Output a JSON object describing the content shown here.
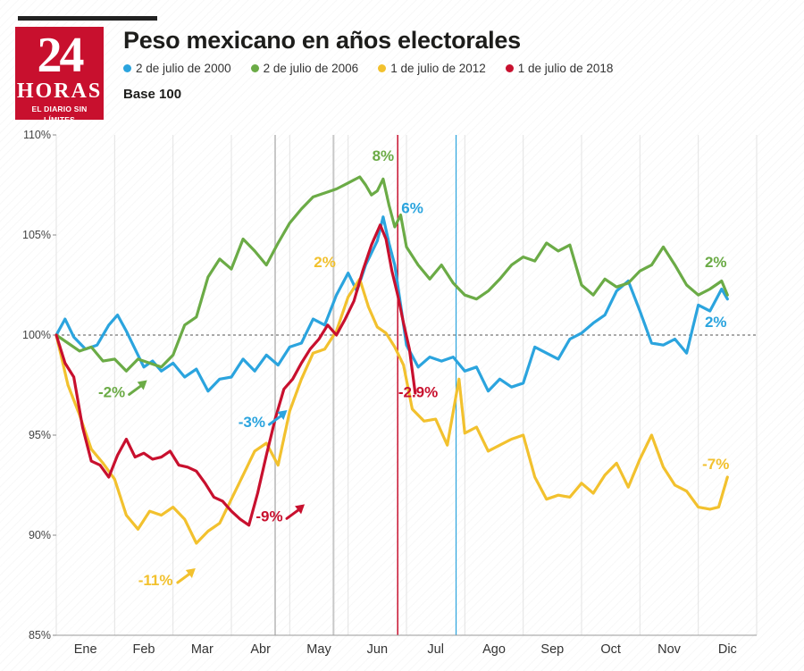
{
  "header": {
    "logo_number": "24",
    "logo_word": "HORAS",
    "logo_tagline": "EL DIARIO SIN LÍMITES",
    "title": "Peso mexicano en años electorales",
    "base_note": "Base 100"
  },
  "chart_data": {
    "type": "line",
    "ylim": [
      85,
      110
    ],
    "y_ticks": [
      85,
      90,
      95,
      100,
      105,
      110
    ],
    "y_tick_labels": [
      "85%",
      "90%",
      "95%",
      "100%",
      "105%",
      "110%"
    ],
    "x_ticks": [
      "Ene",
      "Feb",
      "Mar",
      "Abr",
      "May",
      "Jun",
      "Jul",
      "Ago",
      "Sep",
      "Oct",
      "Nov",
      "Dic"
    ],
    "reference_line": 100,
    "grid": "vertical",
    "series": [
      {
        "name": "2 de julio de 2000",
        "color": "#2ba4de",
        "x": [
          0.0,
          0.15,
          0.3,
          0.5,
          0.7,
          0.9,
          1.05,
          1.2,
          1.35,
          1.5,
          1.65,
          1.8,
          2.0,
          2.2,
          2.4,
          2.6,
          2.8,
          3.0,
          3.2,
          3.4,
          3.6,
          3.8,
          4.0,
          4.2,
          4.4,
          4.6,
          4.8,
          5.0,
          5.15,
          5.3,
          5.5,
          5.6,
          5.7,
          5.8,
          5.9,
          6.0,
          6.2,
          6.4,
          6.6,
          6.8,
          7.0,
          7.2,
          7.4,
          7.6,
          7.8,
          8.0,
          8.2,
          8.4,
          8.6,
          8.8,
          9.0,
          9.2,
          9.4,
          9.6,
          9.8,
          10.0,
          10.2,
          10.4,
          10.6,
          10.8,
          11.0,
          11.2,
          11.4,
          11.5
        ],
        "values": [
          100.0,
          100.8,
          99.9,
          99.3,
          99.5,
          100.5,
          101.0,
          100.2,
          99.3,
          98.4,
          98.7,
          98.2,
          98.6,
          97.9,
          98.3,
          97.2,
          97.8,
          97.9,
          98.8,
          98.2,
          99.0,
          98.5,
          99.4,
          99.6,
          100.8,
          100.5,
          102.0,
          103.1,
          102.2,
          103.5,
          104.7,
          105.9,
          104.6,
          103.5,
          101.5,
          99.5,
          98.4,
          98.9,
          98.7,
          98.9,
          98.2,
          98.4,
          97.2,
          97.8,
          97.4,
          97.6,
          99.4,
          99.1,
          98.8,
          99.8,
          100.1,
          100.6,
          101.0,
          102.2,
          102.7,
          101.2,
          99.6,
          99.5,
          99.8,
          99.1,
          101.5,
          101.2,
          102.3,
          101.8
        ]
      },
      {
        "name": "2 de julio de 2006",
        "color": "#6bab46",
        "x": [
          0.0,
          0.2,
          0.4,
          0.6,
          0.8,
          1.0,
          1.2,
          1.4,
          1.6,
          1.8,
          2.0,
          2.2,
          2.4,
          2.6,
          2.8,
          3.0,
          3.2,
          3.4,
          3.6,
          3.8,
          4.0,
          4.2,
          4.4,
          4.6,
          4.8,
          5.0,
          5.2,
          5.3,
          5.4,
          5.5,
          5.6,
          5.7,
          5.8,
          5.9,
          6.0,
          6.2,
          6.4,
          6.6,
          6.8,
          7.0,
          7.2,
          7.4,
          7.6,
          7.8,
          8.0,
          8.2,
          8.4,
          8.6,
          8.8,
          9.0,
          9.2,
          9.4,
          9.6,
          9.8,
          10.0,
          10.2,
          10.4,
          10.6,
          10.8,
          11.0,
          11.2,
          11.4,
          11.5
        ],
        "values": [
          100.0,
          99.6,
          99.2,
          99.4,
          98.7,
          98.8,
          98.2,
          98.8,
          98.6,
          98.4,
          99.0,
          100.5,
          100.9,
          102.9,
          103.8,
          103.3,
          104.8,
          104.2,
          103.5,
          104.6,
          105.6,
          106.3,
          106.9,
          107.1,
          107.3,
          107.6,
          107.9,
          107.5,
          107.0,
          107.2,
          107.8,
          106.5,
          105.4,
          106.0,
          104.4,
          103.5,
          102.8,
          103.5,
          102.6,
          102.0,
          101.8,
          102.2,
          102.8,
          103.5,
          103.9,
          103.7,
          104.6,
          104.2,
          104.5,
          102.5,
          102.0,
          102.8,
          102.4,
          102.6,
          103.2,
          103.5,
          104.4,
          103.5,
          102.5,
          102.0,
          102.3,
          102.7,
          102.0
        ]
      },
      {
        "name": "1 de julio de 2012",
        "color": "#f2c12e",
        "x": [
          0.0,
          0.2,
          0.4,
          0.6,
          0.8,
          1.0,
          1.2,
          1.4,
          1.6,
          1.8,
          2.0,
          2.2,
          2.4,
          2.6,
          2.8,
          3.0,
          3.2,
          3.4,
          3.6,
          3.8,
          4.0,
          4.2,
          4.4,
          4.6,
          4.8,
          5.0,
          5.2,
          5.35,
          5.5,
          5.65,
          5.8,
          5.95,
          6.1,
          6.3,
          6.5,
          6.7,
          6.9,
          7.0,
          7.2,
          7.4,
          7.6,
          7.8,
          8.0,
          8.2,
          8.4,
          8.6,
          8.8,
          9.0,
          9.2,
          9.4,
          9.6,
          9.8,
          10.0,
          10.2,
          10.4,
          10.6,
          10.8,
          11.0,
          11.2,
          11.35,
          11.5
        ],
        "values": [
          100.0,
          97.5,
          96.0,
          94.3,
          93.6,
          92.8,
          91.0,
          90.3,
          91.2,
          91.0,
          91.4,
          90.8,
          89.6,
          90.2,
          90.6,
          91.8,
          93.0,
          94.2,
          94.6,
          93.5,
          96.2,
          97.8,
          99.1,
          99.3,
          100.2,
          101.9,
          102.8,
          101.4,
          100.4,
          100.1,
          99.4,
          98.5,
          96.3,
          95.7,
          95.8,
          94.5,
          97.8,
          95.1,
          95.4,
          94.2,
          94.5,
          94.8,
          95.0,
          92.9,
          91.8,
          92.0,
          91.9,
          92.6,
          92.1,
          93.0,
          93.6,
          92.4,
          93.8,
          95.0,
          93.4,
          92.5,
          92.2,
          91.4,
          91.3,
          91.4,
          92.9
        ]
      },
      {
        "name": "1 de julio de 2018",
        "color": "#c8102e",
        "x": [
          0.0,
          0.15,
          0.3,
          0.45,
          0.6,
          0.75,
          0.9,
          1.05,
          1.2,
          1.35,
          1.5,
          1.65,
          1.8,
          1.95,
          2.1,
          2.25,
          2.4,
          2.55,
          2.7,
          2.85,
          3.0,
          3.15,
          3.3,
          3.45,
          3.6,
          3.75,
          3.9,
          4.05,
          4.2,
          4.35,
          4.5,
          4.65,
          4.8,
          4.95,
          5.1,
          5.25,
          5.4,
          5.55,
          5.65,
          5.75,
          5.85,
          5.95,
          6.05,
          6.15
        ],
        "values": [
          100.0,
          98.6,
          97.9,
          95.4,
          93.7,
          93.5,
          92.9,
          94.0,
          94.8,
          93.9,
          94.1,
          93.8,
          93.9,
          94.2,
          93.5,
          93.4,
          93.2,
          92.6,
          91.9,
          91.7,
          91.2,
          90.8,
          90.5,
          92.1,
          94.0,
          95.8,
          97.3,
          97.8,
          98.6,
          99.3,
          99.8,
          100.5,
          100.0,
          100.8,
          101.7,
          103.2,
          104.5,
          105.5,
          104.8,
          103.2,
          102.0,
          100.6,
          99.3,
          97.1
        ]
      }
    ],
    "annotations": [
      {
        "text": "-2%",
        "color": "#6bab46",
        "x": 0.95,
        "y": 96.9,
        "arrow": true
      },
      {
        "text": "-3%",
        "color": "#2ba4de",
        "x": 3.35,
        "y": 95.4,
        "arrow": true
      },
      {
        "text": "-11%",
        "color": "#f2c12e",
        "x": 1.7,
        "y": 87.5,
        "arrow": true
      },
      {
        "text": "-9%",
        "color": "#c8102e",
        "x": 3.65,
        "y": 90.7,
        "arrow": true
      },
      {
        "text": "8%",
        "color": "#6bab46",
        "x": 5.6,
        "y": 108.7,
        "arrow": false
      },
      {
        "text": "6%",
        "color": "#2ba4de",
        "x": 6.1,
        "y": 106.1,
        "arrow": false
      },
      {
        "text": "2%",
        "color": "#f2c12e",
        "x": 4.6,
        "y": 103.4,
        "arrow": false
      },
      {
        "text": "-2.9%",
        "color": "#c8102e",
        "x": 6.2,
        "y": 96.9,
        "arrow": false
      },
      {
        "text": "2%",
        "color": "#6bab46",
        "x": 11.3,
        "y": 103.4,
        "arrow": false
      },
      {
        "text": "2%",
        "color": "#2ba4de",
        "x": 11.3,
        "y": 100.4,
        "arrow": false
      },
      {
        "text": "-7%",
        "color": "#f2c12e",
        "x": 11.3,
        "y": 93.3,
        "arrow": false
      }
    ]
  }
}
